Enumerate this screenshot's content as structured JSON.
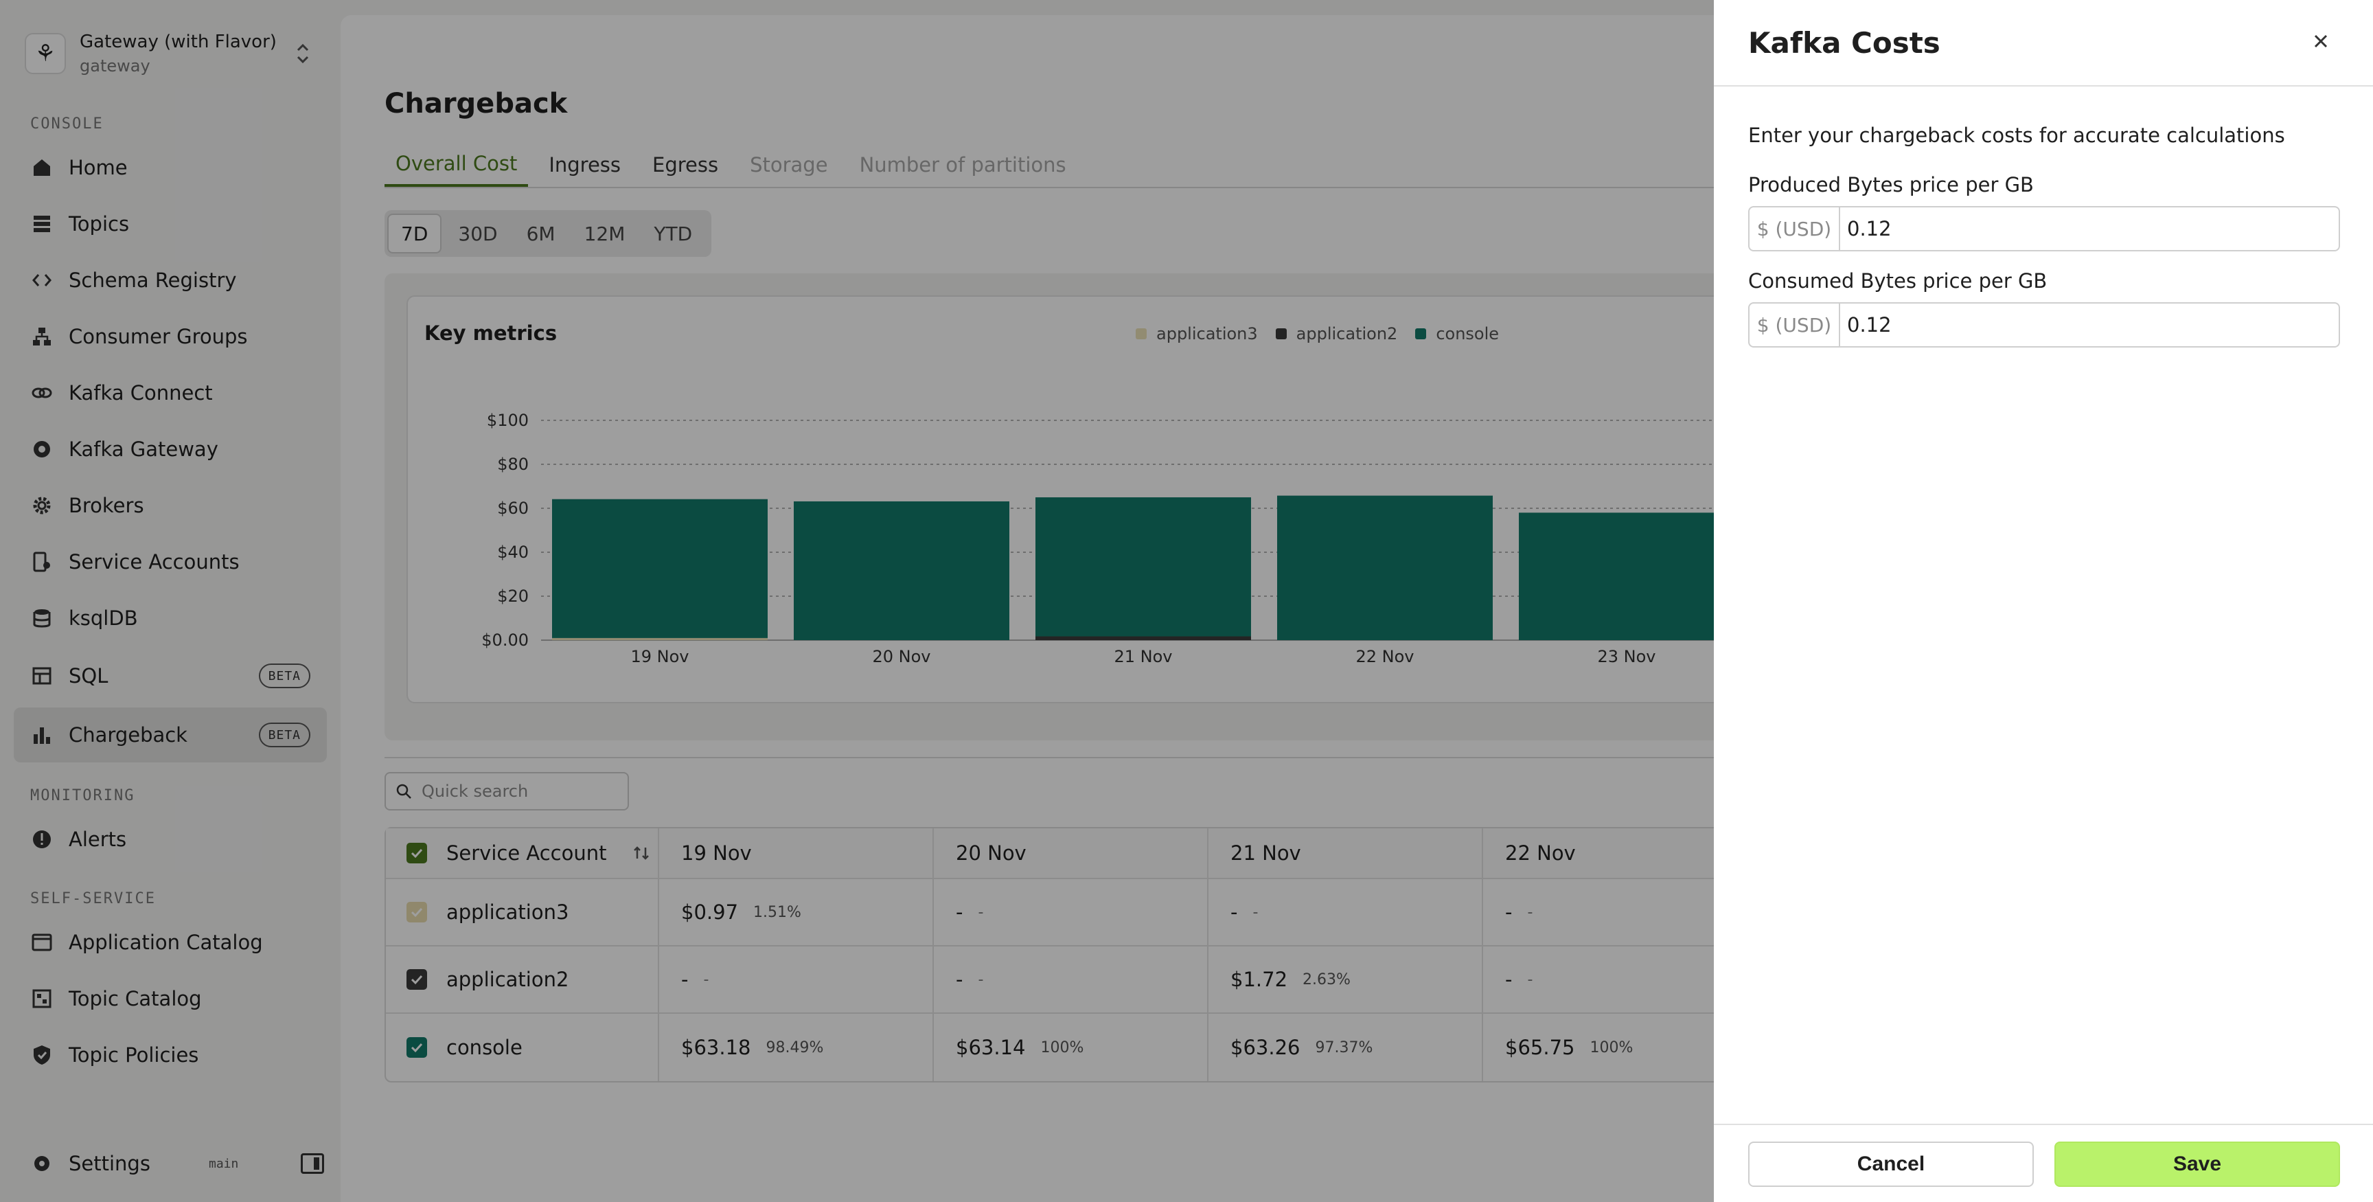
{
  "workspace": {
    "name": "Gateway (with Flavor)",
    "sub": "gateway"
  },
  "sidebar": {
    "sections": {
      "console": "CONSOLE",
      "monitoring": "MONITORING",
      "self_service": "SELF-SERVICE"
    },
    "items": [
      {
        "label": "Home",
        "icon": "home-icon"
      },
      {
        "label": "Topics",
        "icon": "topics-icon"
      },
      {
        "label": "Schema Registry",
        "icon": "code-icon"
      },
      {
        "label": "Consumer Groups",
        "icon": "consumer-groups-icon"
      },
      {
        "label": "Kafka Connect",
        "icon": "connect-icon"
      },
      {
        "label": "Kafka Gateway",
        "icon": "gateway-icon"
      },
      {
        "label": "Brokers",
        "icon": "gear-icon"
      },
      {
        "label": "Service Accounts",
        "icon": "service-account-icon"
      },
      {
        "label": "ksqlDB",
        "icon": "database-icon"
      },
      {
        "label": "SQL",
        "icon": "table-icon",
        "badge": "BETA"
      },
      {
        "label": "Chargeback",
        "icon": "bar-chart-icon",
        "badge": "BETA"
      }
    ],
    "monitoring_items": [
      {
        "label": "Alerts",
        "icon": "alert-icon"
      }
    ],
    "self_service_items": [
      {
        "label": "Application Catalog",
        "icon": "catalog-icon"
      },
      {
        "label": "Topic Catalog",
        "icon": "topic-catalog-icon"
      },
      {
        "label": "Topic Policies",
        "icon": "shield-icon"
      }
    ],
    "footer": {
      "settings": "Settings",
      "branch": "main"
    }
  },
  "page": {
    "title": "Chargeback",
    "tabs": [
      "Overall Cost",
      "Ingress",
      "Egress",
      "Storage",
      "Number of partitions"
    ],
    "ranges": [
      "7D",
      "30D",
      "6M",
      "12M",
      "YTD"
    ],
    "active_range": "7D",
    "search_placeholder": "Quick search"
  },
  "chart_data": {
    "type": "bar",
    "title": "Key metrics",
    "categories": [
      "19 Nov",
      "20 Nov",
      "21 Nov",
      "22 Nov",
      "23 Nov"
    ],
    "series": [
      {
        "name": "application3",
        "values": [
          0.97,
          0,
          0,
          0,
          0
        ],
        "color": "#ece2b8"
      },
      {
        "name": "application2",
        "values": [
          0,
          0,
          1.72,
          0,
          0
        ],
        "color": "#3a3a3a"
      },
      {
        "name": "console",
        "values": [
          63.18,
          63.14,
          63.26,
          65.75,
          58.0
        ],
        "color": "#137a6a"
      }
    ],
    "yticks": [
      "$0.00",
      "$20",
      "$40",
      "$60",
      "$80",
      "$100"
    ],
    "ylim": [
      0,
      100
    ],
    "grid": true,
    "legend": "top"
  },
  "table": {
    "headers": [
      "Service Account",
      "19 Nov",
      "20 Nov",
      "21 Nov",
      "22 Nov"
    ],
    "rows": [
      {
        "name": "application3",
        "color": "#e8dcae",
        "cells": [
          {
            "v": "$0.97",
            "p": "1.51%"
          },
          {
            "v": "-",
            "p": "-"
          },
          {
            "v": "-",
            "p": "-"
          },
          {
            "v": "-",
            "p": "-"
          }
        ]
      },
      {
        "name": "application2",
        "color": "#3a3a3a",
        "cells": [
          {
            "v": "-",
            "p": "-"
          },
          {
            "v": "-",
            "p": "-"
          },
          {
            "v": "$1.72",
            "p": "2.63%"
          },
          {
            "v": "-",
            "p": "-"
          }
        ]
      },
      {
        "name": "console",
        "color": "#137a6a",
        "cells": [
          {
            "v": "$63.18",
            "p": "98.49%"
          },
          {
            "v": "$63.14",
            "p": "100%"
          },
          {
            "v": "$63.26",
            "p": "97.37%"
          },
          {
            "v": "$65.75",
            "p": "100%"
          }
        ]
      }
    ]
  },
  "drawer": {
    "title": "Kafka Costs",
    "intro": "Enter your chargeback costs for accurate calculations",
    "produced_label": "Produced Bytes price per GB",
    "consumed_label": "Consumed Bytes price per GB",
    "currency_prefix": "$ (USD)",
    "produced_value": "0.12",
    "consumed_value": "0.12",
    "cancel": "Cancel",
    "save": "Save"
  },
  "colors": {
    "accent": "#b9f26a",
    "brand_green": "#4d7a1f",
    "console": "#137a6a"
  }
}
